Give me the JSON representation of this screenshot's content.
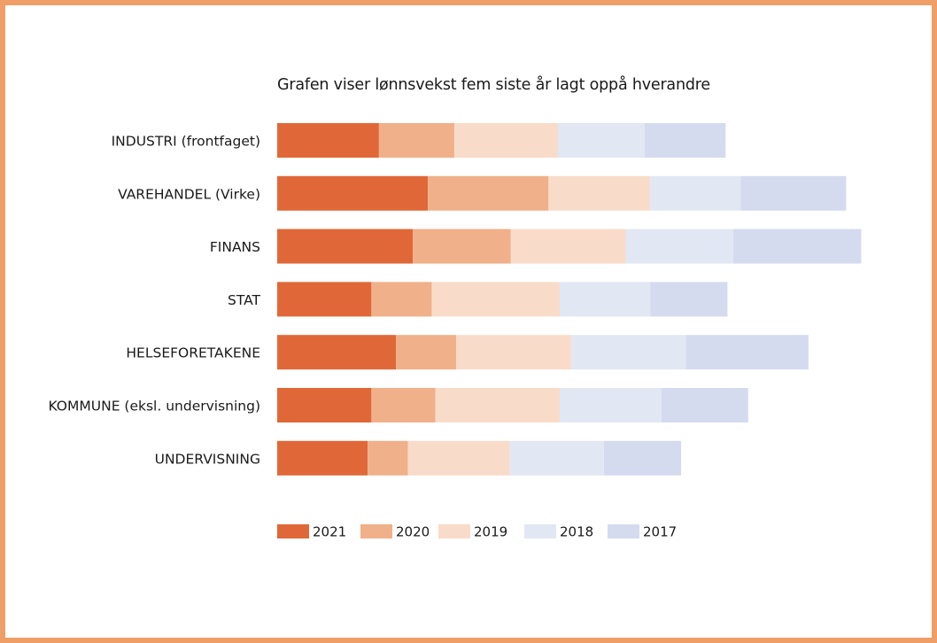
{
  "chart_data": {
    "type": "bar",
    "orientation": "horizontal",
    "stacked": true,
    "title": "Grafen viser lønnsvekst fem siste år lagt oppå hverandre",
    "categories": [
      "INDUSTRI (frontfaget)",
      "VAREHANDEL (Virke)",
      "FINANS",
      "STAT",
      "HELSEFORETAKENE",
      "KOMMUNE (eksl. undervisning)",
      "UNDERVISNING"
    ],
    "series": [
      {
        "name": "2021",
        "color": "#e06838",
        "values": [
          2.7,
          4.0,
          3.6,
          2.5,
          3.15,
          2.5,
          2.4
        ]
      },
      {
        "name": "2020",
        "color": "#f0b08a",
        "values": [
          2.0,
          3.2,
          2.6,
          1.6,
          1.6,
          1.7,
          1.07
        ]
      },
      {
        "name": "2019",
        "color": "#f8dcc9",
        "values": [
          2.75,
          2.7,
          3.05,
          3.4,
          3.05,
          3.3,
          2.7
        ]
      },
      {
        "name": "2018",
        "color": "#e2e7f4",
        "values": [
          2.3,
          2.4,
          2.85,
          2.4,
          3.05,
          2.7,
          2.5
        ]
      },
      {
        "name": "2017",
        "color": "#d5dbef",
        "values": [
          2.15,
          2.8,
          3.4,
          2.05,
          3.25,
          2.3,
          2.05
        ]
      }
    ],
    "xlim": [
      0,
      16.5
    ],
    "grid": false,
    "legend_position": "bottom",
    "xlabel": "",
    "ylabel": ""
  }
}
